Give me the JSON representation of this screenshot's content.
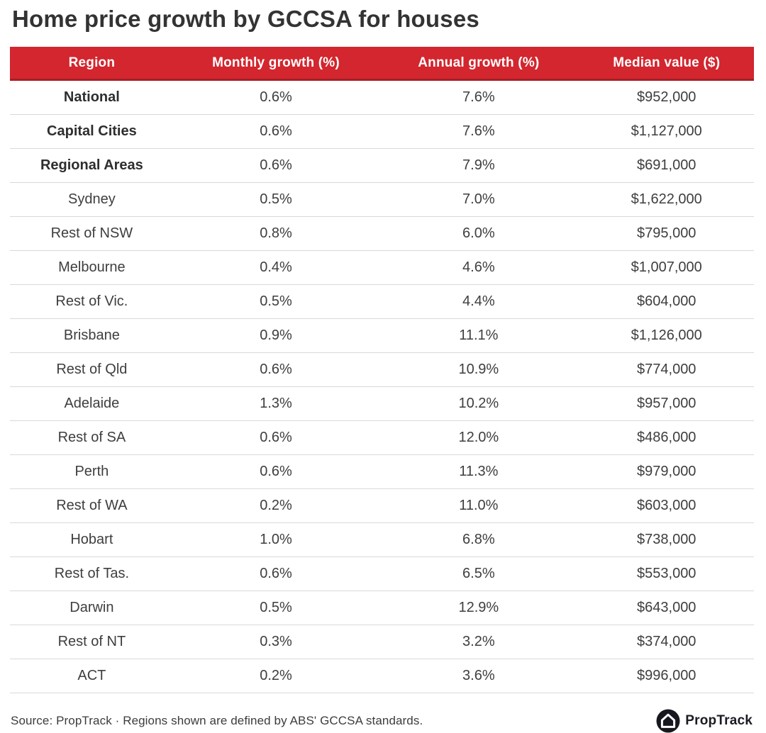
{
  "title": "Home price growth by GCCSA for houses",
  "chart_data": {
    "type": "table",
    "title": "Home price growth by GCCSA for houses",
    "columns": [
      "Region",
      "Monthly growth (%)",
      "Annual growth (%)",
      "Median value ($)"
    ],
    "rows": [
      {
        "region": "National",
        "monthly": "0.6%",
        "annual": "7.6%",
        "median": "$952,000",
        "bold": true
      },
      {
        "region": "Capital Cities",
        "monthly": "0.6%",
        "annual": "7.6%",
        "median": "$1,127,000",
        "bold": true
      },
      {
        "region": "Regional Areas",
        "monthly": "0.6%",
        "annual": "7.9%",
        "median": "$691,000",
        "bold": true
      },
      {
        "region": "Sydney",
        "monthly": "0.5%",
        "annual": "7.0%",
        "median": "$1,622,000",
        "bold": false
      },
      {
        "region": "Rest of NSW",
        "monthly": "0.8%",
        "annual": "6.0%",
        "median": "$795,000",
        "bold": false
      },
      {
        "region": "Melbourne",
        "monthly": "0.4%",
        "annual": "4.6%",
        "median": "$1,007,000",
        "bold": false
      },
      {
        "region": "Rest of Vic.",
        "monthly": "0.5%",
        "annual": "4.4%",
        "median": "$604,000",
        "bold": false
      },
      {
        "region": "Brisbane",
        "monthly": "0.9%",
        "annual": "11.1%",
        "median": "$1,126,000",
        "bold": false
      },
      {
        "region": "Rest of Qld",
        "monthly": "0.6%",
        "annual": "10.9%",
        "median": "$774,000",
        "bold": false
      },
      {
        "region": "Adelaide",
        "monthly": "1.3%",
        "annual": "10.2%",
        "median": "$957,000",
        "bold": false
      },
      {
        "region": "Rest of SA",
        "monthly": "0.6%",
        "annual": "12.0%",
        "median": "$486,000",
        "bold": false
      },
      {
        "region": "Perth",
        "monthly": "0.6%",
        "annual": "11.3%",
        "median": "$979,000",
        "bold": false
      },
      {
        "region": "Rest of WA",
        "monthly": "0.2%",
        "annual": "11.0%",
        "median": "$603,000",
        "bold": false
      },
      {
        "region": "Hobart",
        "monthly": "1.0%",
        "annual": "6.8%",
        "median": "$738,000",
        "bold": false
      },
      {
        "region": "Rest of Tas.",
        "monthly": "0.6%",
        "annual": "6.5%",
        "median": "$553,000",
        "bold": false
      },
      {
        "region": "Darwin",
        "monthly": "0.5%",
        "annual": "12.9%",
        "median": "$643,000",
        "bold": false
      },
      {
        "region": "Rest of NT",
        "monthly": "0.3%",
        "annual": "3.2%",
        "median": "$374,000",
        "bold": false
      },
      {
        "region": "ACT",
        "monthly": "0.2%",
        "annual": "3.6%",
        "median": "$996,000",
        "bold": false
      }
    ]
  },
  "footer": {
    "source_text": "Source: PropTrack · Regions shown are defined by ABS' GCCSA standards.",
    "logo_text": "PropTrack"
  },
  "colors": {
    "header_bg": "#d3262e",
    "header_border": "#a81e26",
    "header_text": "#ffffff",
    "row_border": "#d9d9d9",
    "text": "#3e3e3e",
    "title": "#333333",
    "logo_bg": "#17171f"
  }
}
